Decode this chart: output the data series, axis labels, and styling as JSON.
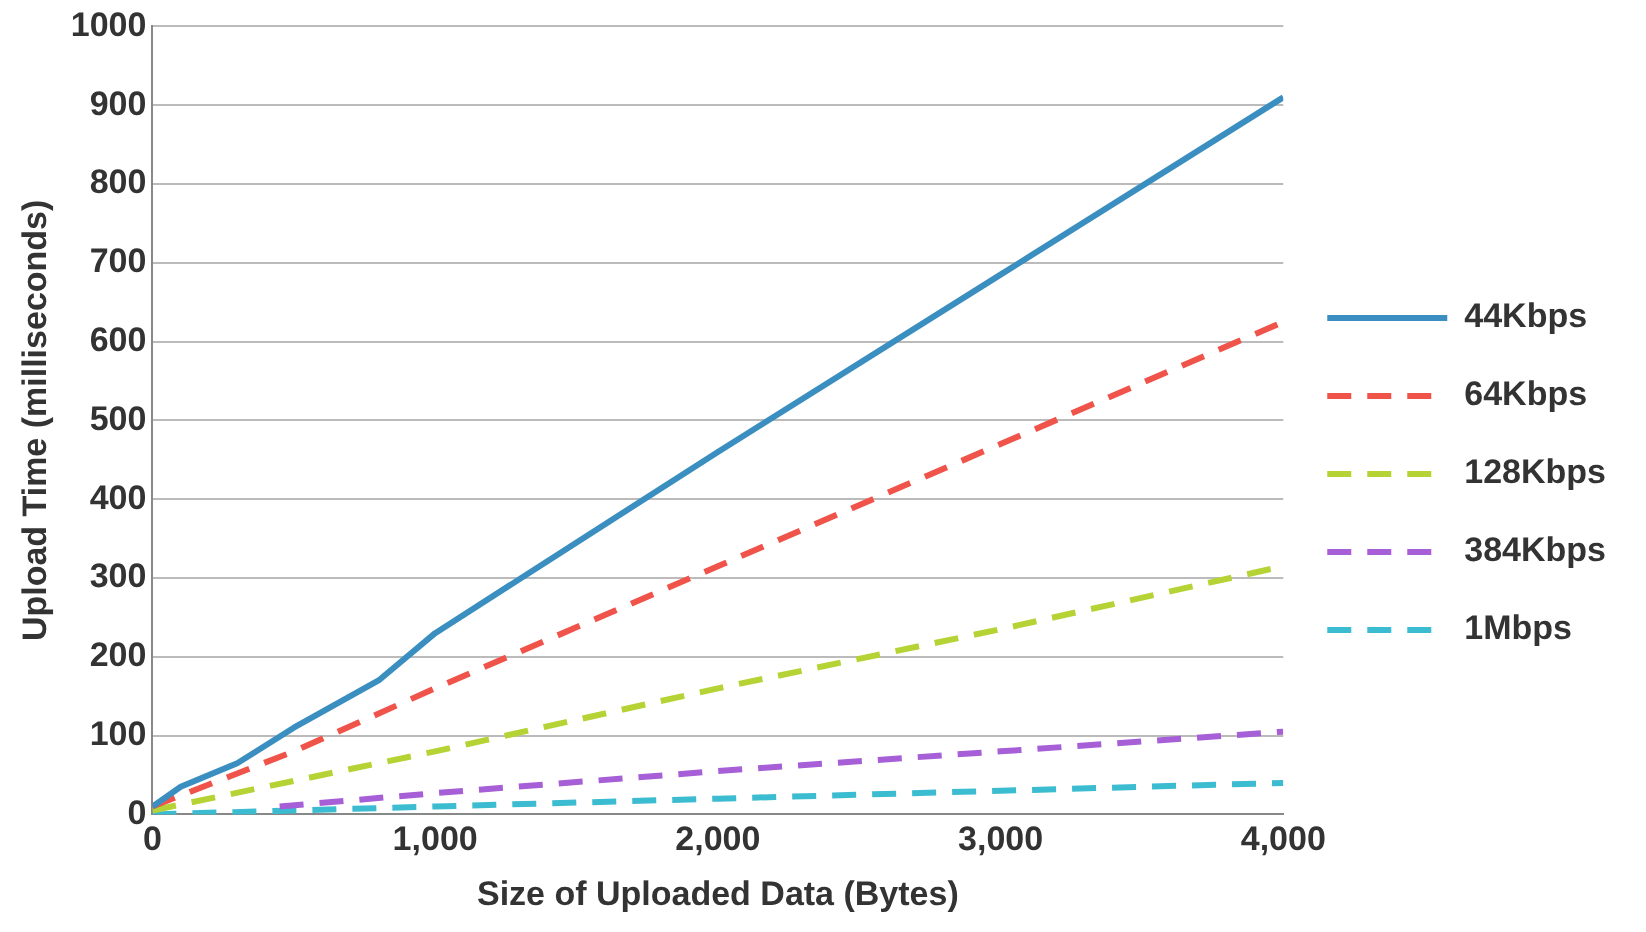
{
  "chart_data": {
    "type": "line",
    "xlabel": "Size of Uploaded Data (Bytes)",
    "ylabel": "Upload Time (milliseconds)",
    "xlim": [
      0,
      4000
    ],
    "xticks": [
      0,
      {
        "value": 1000,
        "label": "1,000"
      },
      {
        "value": 2000,
        "label": "2,000"
      },
      {
        "value": 3000,
        "label": "3,000"
      },
      {
        "value": 4000,
        "label": "4,000"
      }
    ],
    "ylim": [
      0,
      1000
    ],
    "yticks": [
      0,
      100,
      200,
      300,
      400,
      500,
      600,
      700,
      800,
      900,
      1000
    ],
    "grid": "y",
    "legend": "right",
    "marker": "none",
    "series": [
      {
        "name": "44Kbps",
        "color": "#3a8fc0",
        "line_style": "solid",
        "x": [
          0,
          100,
          300,
          500,
          800,
          1000,
          2000,
          3000,
          4000
        ],
        "values": [
          10,
          35,
          65,
          110,
          170,
          230,
          460,
          685,
          910
        ]
      },
      {
        "name": "64Kbps",
        "color": "#f0534a",
        "line_style": "dashed",
        "x": [
          0,
          500,
          1000,
          2000,
          3000,
          4000
        ],
        "values": [
          10,
          80,
          160,
          315,
          470,
          625
        ]
      },
      {
        "name": "128Kbps",
        "color": "#b5d334",
        "line_style": "dashed",
        "x": [
          0,
          1000,
          2000,
          3000,
          4000
        ],
        "values": [
          5,
          80,
          160,
          235,
          315
        ]
      },
      {
        "name": "384Kbps",
        "color": "#a65fd6",
        "line_style": "dashed",
        "x": [
          450,
          1000,
          2000,
          3000,
          4000
        ],
        "values": [
          10,
          27,
          55,
          80,
          105
        ]
      },
      {
        "name": "1Mbps",
        "color": "#3bbcd0",
        "line_style": "dashed",
        "x": [
          0,
          1000,
          2000,
          3000,
          4000
        ],
        "values": [
          0,
          10,
          20,
          30,
          40
        ]
      }
    ]
  }
}
